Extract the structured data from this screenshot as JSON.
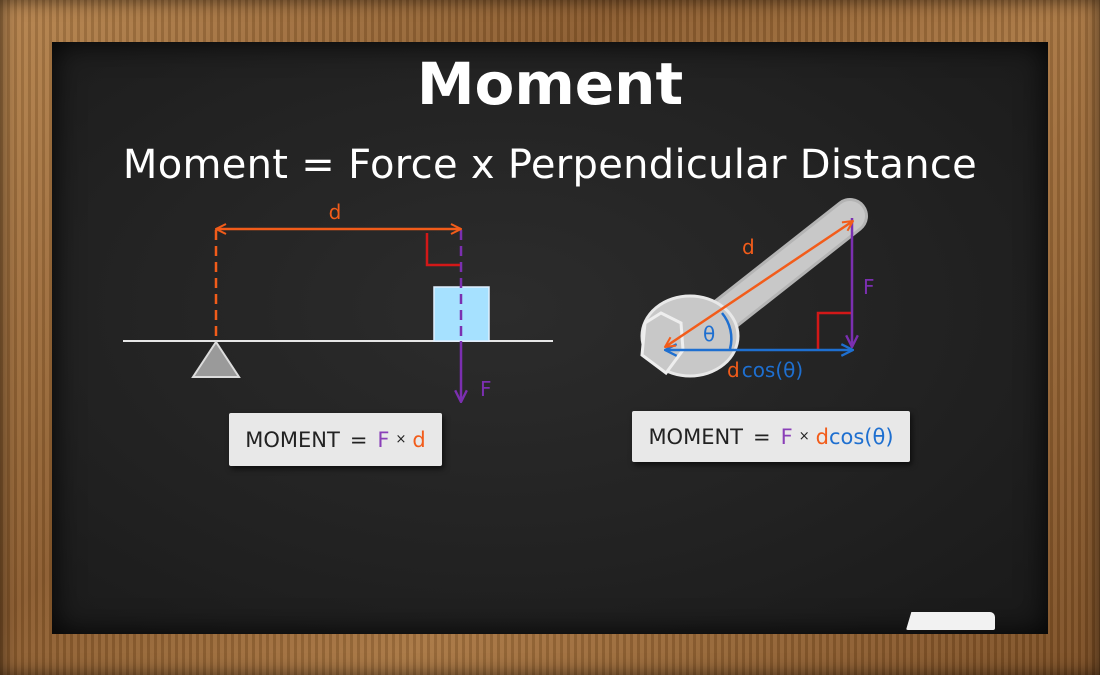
{
  "title": "Moment",
  "subtitle": "Moment = Force x Perpendicular Distance",
  "left_diagram": {
    "distance_label": "d",
    "force_label": "F"
  },
  "right_diagram": {
    "distance_label": "d",
    "force_label": "F",
    "angle_label": "θ",
    "projection_d": "d",
    "projection_cos": "cos(θ)"
  },
  "formula_left": {
    "prefix": "MOMENT",
    "equals": "=",
    "force": "F",
    "times": "×",
    "distance": "d"
  },
  "formula_right": {
    "prefix": "MOMENT",
    "equals": "=",
    "force": "F",
    "times": "×",
    "distance": "d",
    "cos": "cos(θ)"
  },
  "colors": {
    "distance": "#f25c1a",
    "force": "#7b2fb0",
    "projection": "#1e6fd0",
    "block": "#a6e1ff",
    "right_angle": "#d21818"
  }
}
